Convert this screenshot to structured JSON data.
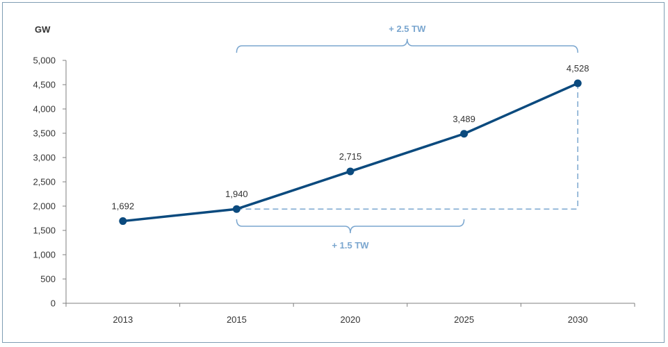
{
  "chart_data": {
    "type": "line",
    "title": "",
    "xlabel": "",
    "ylabel": "GW",
    "categories": [
      "2013",
      "2015",
      "2020",
      "2025",
      "2030"
    ],
    "series": [
      {
        "values": [
          1692,
          1940,
          2715,
          3489,
          4528
        ]
      }
    ],
    "data_labels": [
      "1,692",
      "1,940",
      "2,715",
      "3,489",
      "4,528"
    ],
    "y_ticks": [
      "0",
      "500",
      "1,000",
      "1,500",
      "2,000",
      "2,500",
      "3,000",
      "3,500",
      "4,000",
      "4,500",
      "5,000"
    ],
    "ylim": [
      0,
      5000
    ],
    "grid": false,
    "annotations": [
      {
        "text": "+ 2.5 TW",
        "from": "2015",
        "to": "2030"
      },
      {
        "text": "+ 1.5 TW",
        "from": "2015",
        "to": "2025"
      }
    ],
    "colors": {
      "line": "#0b4a7e",
      "annotation": "#7aa6cf",
      "axis": "#7f7f7f"
    }
  }
}
